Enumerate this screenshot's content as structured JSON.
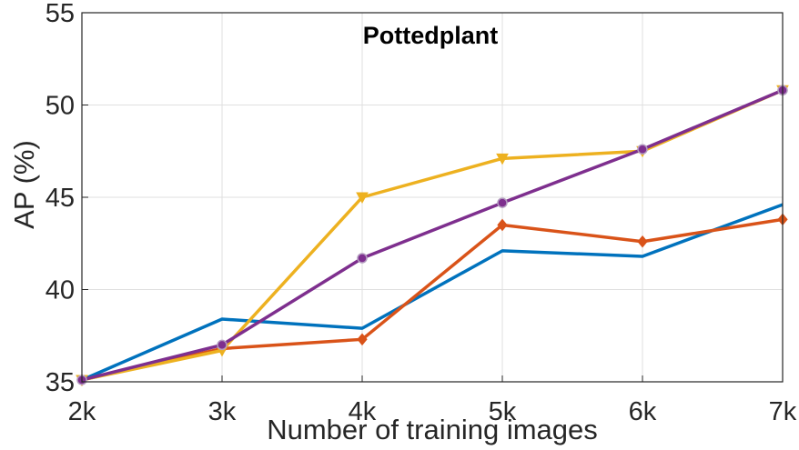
{
  "chart_data": {
    "type": "line",
    "title": "Pottedplant",
    "xlabel": "Number of  training images",
    "ylabel": "AP (%)",
    "categories": [
      "2k",
      "3k",
      "4k",
      "5k",
      "6k",
      "7k"
    ],
    "x": [
      2,
      3,
      4,
      5,
      6,
      7
    ],
    "xlim": [
      2,
      7
    ],
    "ylim": [
      35,
      55
    ],
    "yticks": [
      35,
      40,
      45,
      50,
      55
    ],
    "grid": true,
    "series": [
      {
        "color": "#0072BD",
        "marker": "none",
        "values": [
          35.1,
          38.4,
          37.9,
          42.1,
          41.8,
          44.6
        ]
      },
      {
        "color": "#D95319",
        "marker": "diamond",
        "values": [
          35.1,
          36.8,
          37.3,
          43.5,
          42.6,
          43.8
        ]
      },
      {
        "color": "#EDB120",
        "marker": "triangle-down",
        "values": [
          35.1,
          36.7,
          45.0,
          47.1,
          47.5,
          50.8
        ]
      },
      {
        "color": "#7E2F8E",
        "marker": "circle",
        "values": [
          35.1,
          37.0,
          41.7,
          44.7,
          47.6,
          50.8
        ]
      }
    ]
  }
}
